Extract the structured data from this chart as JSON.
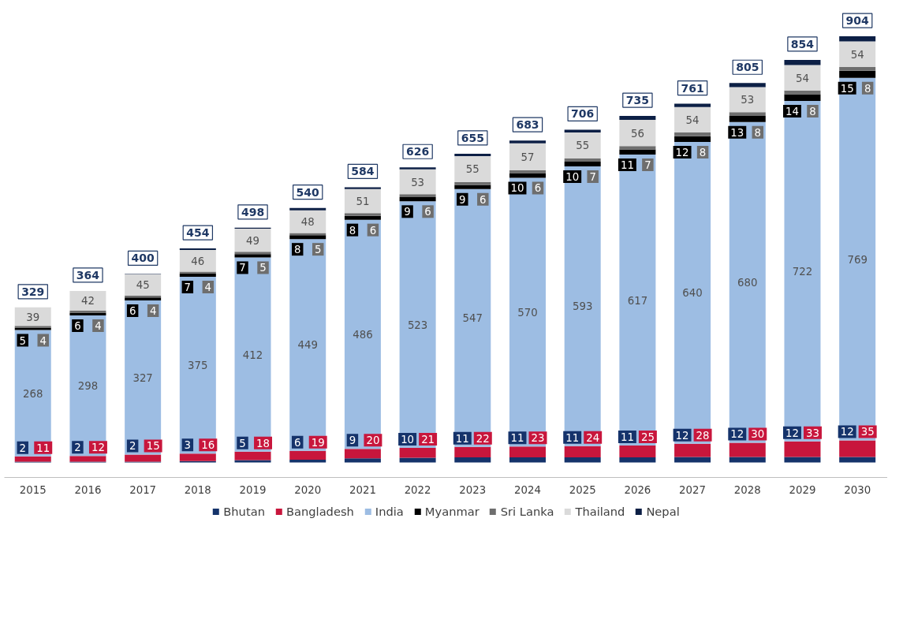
{
  "chart_data": {
    "type": "bar",
    "stacked": true,
    "legend": "bottom",
    "grid": false,
    "categories": [
      "2015",
      "2016",
      "2017",
      "2018",
      "2019",
      "2020",
      "2021",
      "2022",
      "2023",
      "2024",
      "2025",
      "2026",
      "2027",
      "2028",
      "2029",
      "2030"
    ],
    "series": [
      {
        "name": "Bhutan",
        "color": "#15336b",
        "values": [
          2,
          2,
          2,
          3,
          5,
          6,
          9,
          10,
          11,
          11,
          11,
          11,
          12,
          12,
          12,
          12
        ],
        "value_labels": [
          "2",
          "2",
          "2",
          "3",
          "5",
          "6",
          "9",
          "10",
          "11",
          "11",
          "11",
          "11",
          "12",
          "12",
          "12",
          "12"
        ]
      },
      {
        "name": "Bangladesh",
        "color": "#c8163c",
        "values": [
          11,
          12,
          15,
          16,
          18,
          19,
          20,
          21,
          22,
          23,
          24,
          25,
          28,
          30,
          33,
          35
        ],
        "value_labels": [
          "11",
          "12",
          "15",
          "16",
          "18",
          "19",
          "20",
          "21",
          "22",
          "23",
          "24",
          "25",
          "28",
          "30",
          "33",
          "35"
        ]
      },
      {
        "name": "India",
        "color": "#9dbde3",
        "values": [
          268,
          298,
          327,
          375,
          412,
          449,
          486,
          523,
          547,
          570,
          593,
          617,
          640,
          680,
          722,
          769
        ],
        "value_labels": [
          "268",
          "298",
          "327",
          "375",
          "412",
          "449",
          "486",
          "523",
          "547",
          "570",
          "593",
          "617",
          "640",
          "680",
          "722",
          "769"
        ]
      },
      {
        "name": "Myanmar",
        "color": "#000000",
        "values": [
          5,
          6,
          6,
          7,
          7,
          8,
          8,
          9,
          9,
          10,
          10,
          11,
          12,
          13,
          14,
          15
        ],
        "value_labels": [
          "5",
          "6",
          "6",
          "7",
          "7",
          "8",
          "8",
          "9",
          "9",
          "10",
          "10",
          "11",
          "12",
          "13",
          "14",
          "15"
        ]
      },
      {
        "name": "Sri Lanka",
        "color": "#6e6e6e",
        "values": [
          4,
          4,
          4,
          4,
          5,
          5,
          6,
          6,
          6,
          6,
          7,
          7,
          8,
          8,
          8,
          8
        ],
        "value_labels": [
          "4",
          "4",
          "4",
          "4",
          "5",
          "5",
          "6",
          "6",
          "6",
          "6",
          "7",
          "7",
          "8",
          "8",
          "8",
          "8"
        ]
      },
      {
        "name": "Thailand",
        "color": "#dadada",
        "values": [
          39,
          42,
          45,
          46,
          49,
          48,
          51,
          53,
          55,
          57,
          55,
          56,
          54,
          53,
          54,
          54
        ],
        "value_labels": [
          "39",
          "42",
          "45",
          "46",
          "49",
          "48",
          "51",
          "53",
          "55",
          "57",
          "55",
          "56",
          "54",
          "53",
          "54",
          "54"
        ]
      },
      {
        "name": "Nepal",
        "color": "#0c1f45",
        "values": [
          0,
          0,
          1,
          3,
          2,
          5,
          4,
          4,
          5,
          6,
          6,
          8,
          7,
          9,
          11,
          11
        ]
      }
    ],
    "totals": [
      "329",
      "364",
      "400",
      "454",
      "498",
      "540",
      "584",
      "626",
      "655",
      "683",
      "706",
      "735",
      "761",
      "805",
      "854",
      "904"
    ]
  }
}
